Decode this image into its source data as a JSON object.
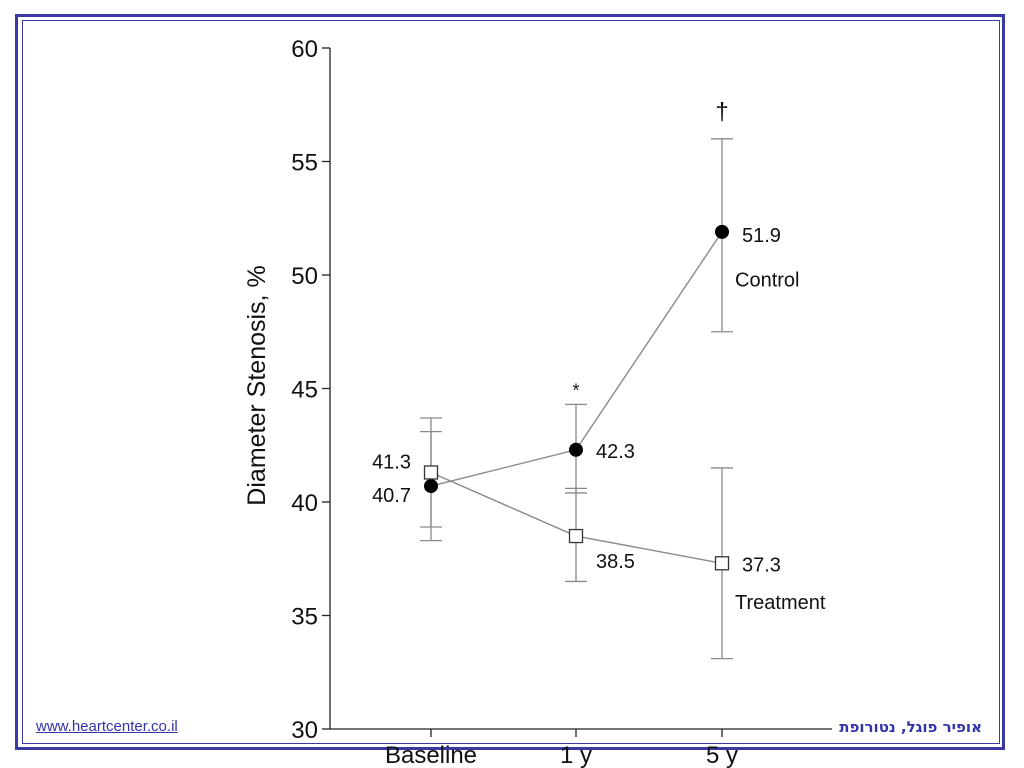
{
  "chart_data": {
    "type": "line",
    "ylabel": "Diameter Stenosis, %",
    "xlabel": "",
    "categories": [
      "Baseline",
      "1 y",
      "5 y"
    ],
    "ylim": [
      30,
      60
    ],
    "yticks": [
      30,
      35,
      40,
      45,
      50,
      55,
      60
    ],
    "series": [
      {
        "name": "Control",
        "marker": "filled-circle",
        "values": [
          40.7,
          42.3,
          51.9
        ],
        "error_low": [
          38.3,
          40.4,
          47.5
        ],
        "error_high": [
          43.1,
          44.3,
          56.0
        ],
        "labels": [
          "40.7",
          "42.3",
          "51.9"
        ]
      },
      {
        "name": "Treatment",
        "marker": "open-square",
        "values": [
          41.3,
          38.5,
          37.3
        ],
        "error_low": [
          38.9,
          36.5,
          33.1
        ],
        "error_high": [
          43.7,
          40.6,
          41.5
        ],
        "labels": [
          "41.3",
          "38.5",
          "37.3"
        ]
      }
    ],
    "annotations": [
      {
        "text": "*",
        "category": "1 y",
        "y": 45.0
      },
      {
        "text": "†",
        "category": "5 y",
        "y": 57.2
      }
    ],
    "grid": false,
    "colors": {
      "line": "#8a8a8a",
      "marker": "#000000",
      "text": "#111111"
    }
  },
  "footer": {
    "link": "www.heartcenter.co.il",
    "author": "אופיר פוגל, נטורופת"
  },
  "frame_color": "#3a3aa6"
}
